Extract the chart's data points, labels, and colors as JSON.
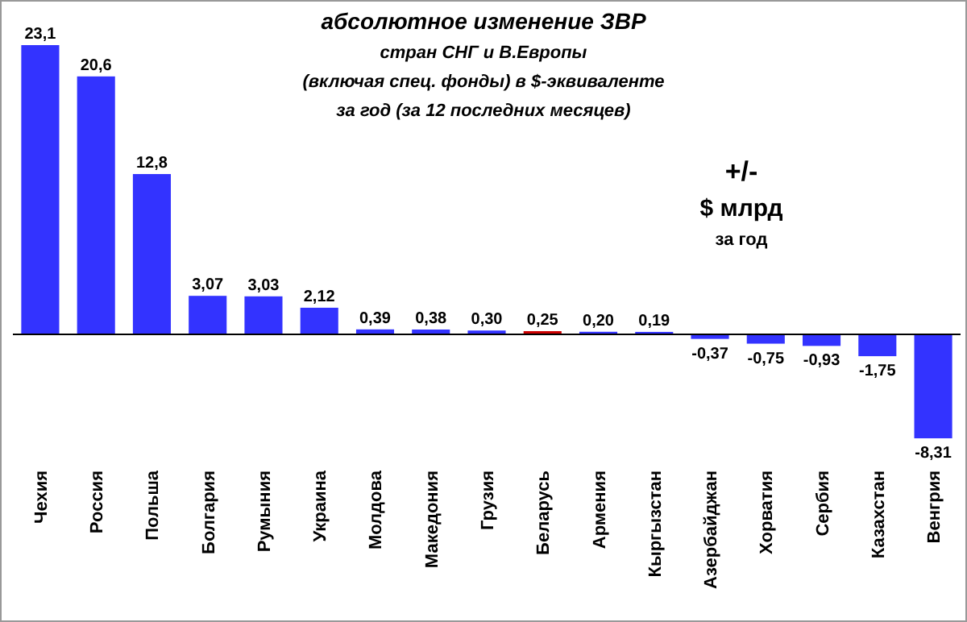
{
  "chart_data": {
    "type": "bar",
    "title": "абсолютное изменение  ЗВР",
    "subtitle": "стран СНГ и В.Европы",
    "annotations": [
      "(включая спец. фонды) в $-эквиваленте",
      "за год (за 12 последних месяцев)",
      "+/-",
      "$ млрд",
      "за год"
    ],
    "categories": [
      "Чехия",
      "Россия",
      "Польша",
      "Болгария",
      "Румыния",
      "Украина",
      "Молдова",
      "Македония",
      "Грузия",
      "Беларусь",
      "Армения",
      "Кыргызстан",
      "Азербайджан",
      "Хорватия",
      "Сербия",
      "Казахстан",
      "Венгрия"
    ],
    "values": [
      23.1,
      20.6,
      12.8,
      3.07,
      3.03,
      2.12,
      0.39,
      0.38,
      0.3,
      0.25,
      0.2,
      0.19,
      -0.37,
      -0.75,
      -0.93,
      -1.75,
      -8.31
    ],
    "value_labels": [
      "23,1",
      "20,6",
      "12,8",
      "3,07",
      "3,03",
      "2,12",
      "0,39",
      "0,38",
      "0,30",
      "0,25",
      "0,20",
      "0,19",
      "-0,37",
      "-0,75",
      "-0,93",
      "-1,75",
      "-8,31"
    ],
    "colors": [
      "#3333ff",
      "#3333ff",
      "#3333ff",
      "#3333ff",
      "#3333ff",
      "#3333ff",
      "#3333ff",
      "#3333ff",
      "#3333ff",
      "#cc0000",
      "#3333ff",
      "#3333ff",
      "#3333ff",
      "#3333ff",
      "#3333ff",
      "#3333ff",
      "#3333ff"
    ],
    "grid": false
  }
}
